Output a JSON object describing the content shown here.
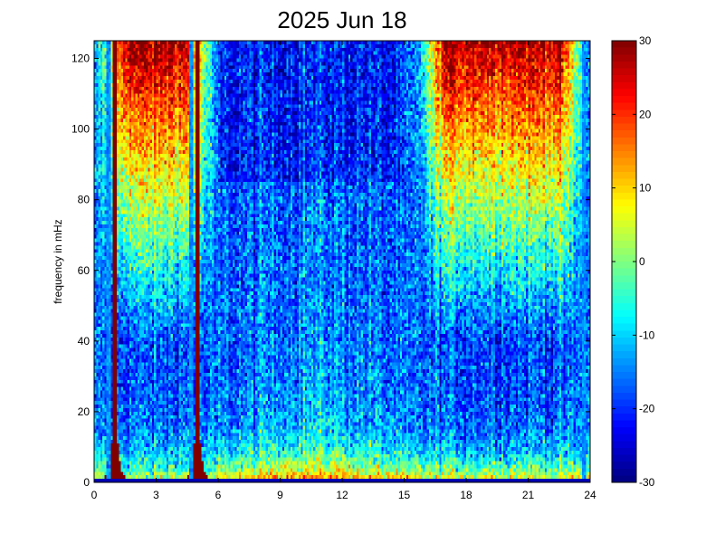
{
  "chart_data": {
    "type": "heatmap",
    "title": "2025 Jun 18",
    "xlabel": "",
    "ylabel": "frequency in mHz",
    "xlim": [
      0,
      24
    ],
    "ylim": [
      0,
      125
    ],
    "x_ticks": [
      0,
      3,
      6,
      9,
      12,
      15,
      18,
      21,
      24
    ],
    "y_ticks": [
      0,
      20,
      40,
      60,
      80,
      100,
      120
    ],
    "colorbar": {
      "colormap": "jet",
      "clim": [
        -30,
        30
      ],
      "ticks": [
        -30,
        -20,
        -10,
        0,
        10,
        20,
        30
      ]
    },
    "x_grid_resolution_hours": 0.1,
    "y_grid_resolution_mHz": 1,
    "bursts": [
      {
        "center_hour": 1.0,
        "min_halfwidth": 0.12,
        "base_halfwidth": 0.65,
        "value": 30
      },
      {
        "center_hour": 5.0,
        "min_halfwidth": 0.12,
        "base_halfwidth": 0.65,
        "value": 30
      }
    ],
    "features": {
      "dead_columns_hours": [
        0.7,
        4.7,
        23.7
      ],
      "bottom_band_mHz": [
        0,
        1
      ],
      "quiet_period_hours": [
        6,
        15
      ],
      "high_power_top_region_hours": [
        [
          0,
          6
        ],
        [
          15.5,
          24
        ]
      ]
    }
  }
}
